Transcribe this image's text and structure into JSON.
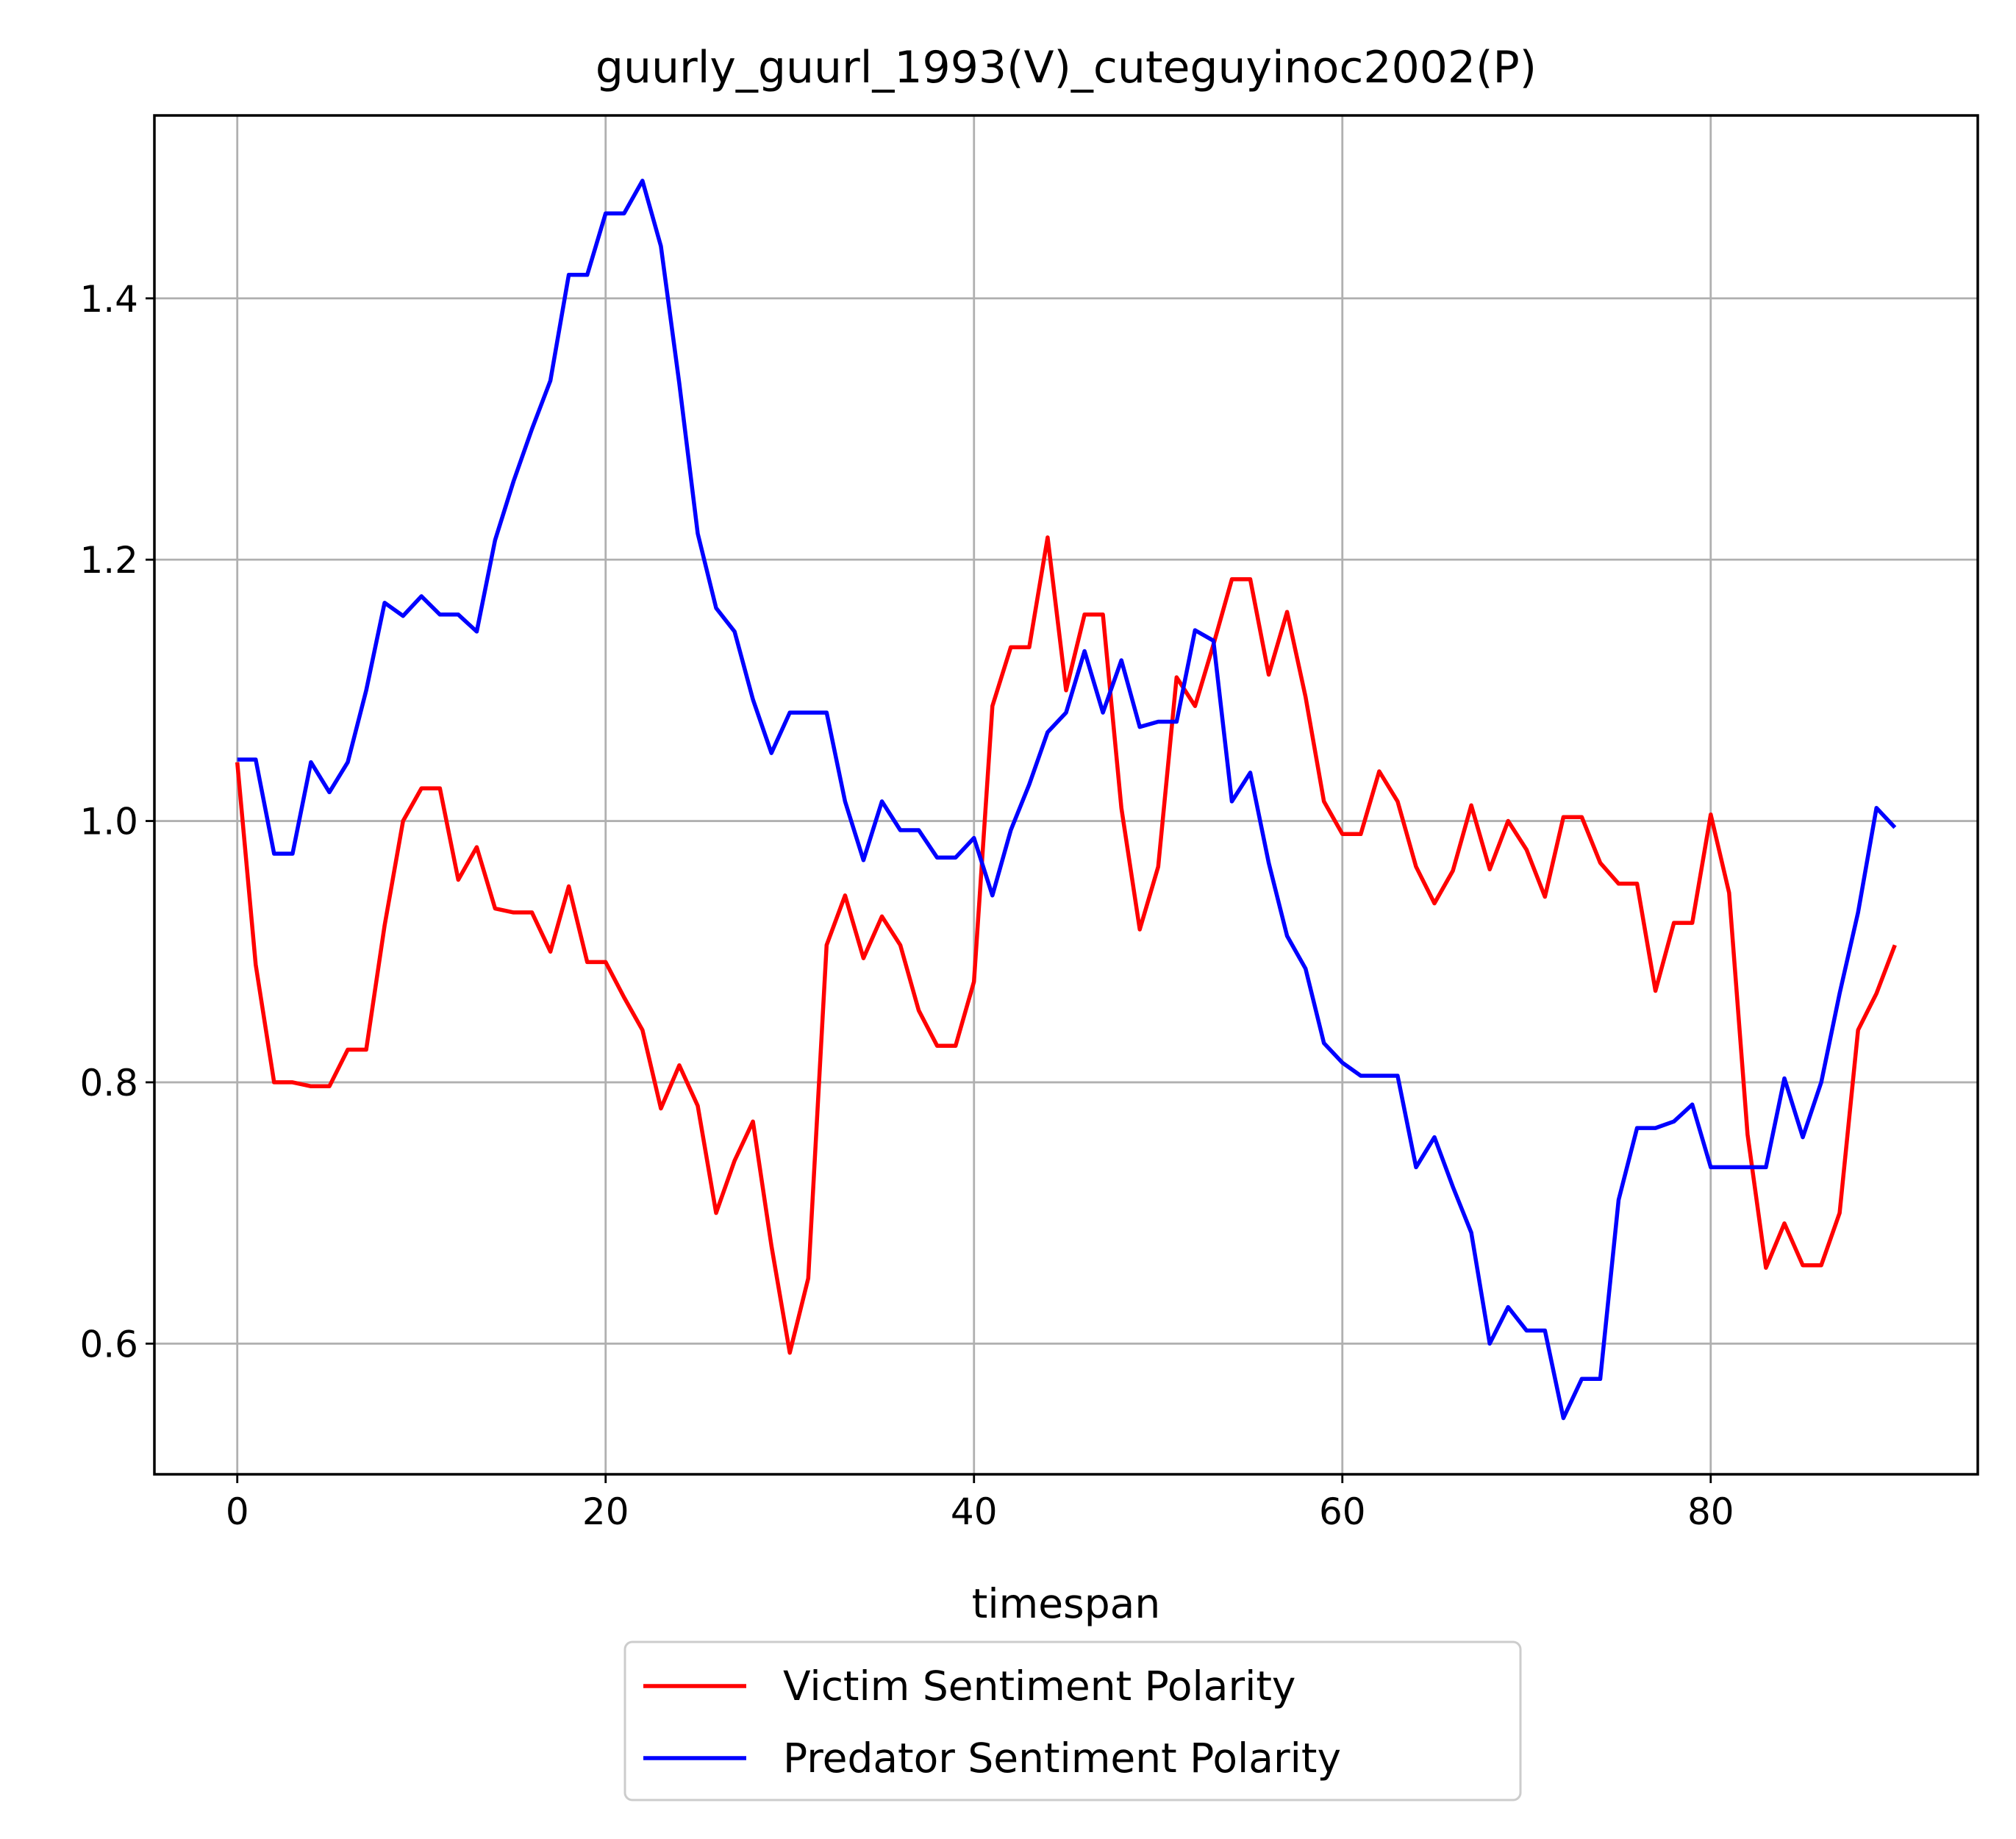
{
  "chart_data": {
    "type": "line",
    "title": "guurly_guurl_1993(V)_cuteguyinoc2002(P)",
    "xlabel": "timespan",
    "ylabel": "",
    "xlim": [
      -4.5,
      94.5
    ],
    "ylim": [
      0.5,
      1.54
    ],
    "xticks": [
      0,
      20,
      40,
      60,
      80
    ],
    "yticks": [
      0.6,
      0.8,
      1.0,
      1.2,
      1.4
    ],
    "xtick_labels": [
      "0",
      "20",
      "40",
      "60",
      "80"
    ],
    "ytick_labels": [
      "0.6",
      "0.8",
      "1.0",
      "1.2",
      "1.4"
    ],
    "grid": true,
    "legend_position": "below-center",
    "series": [
      {
        "name": "Victim Sentiment Polarity",
        "color": "#ff0000",
        "values": [
          1.045,
          0.89,
          0.8,
          0.8,
          0.797,
          0.797,
          0.825,
          0.825,
          0.92,
          1.0,
          1.025,
          1.025,
          0.955,
          0.98,
          0.933,
          0.93,
          0.93,
          0.9,
          0.95,
          0.892,
          0.892,
          0.865,
          0.84,
          0.78,
          0.813,
          0.782,
          0.7,
          0.74,
          0.77,
          0.675,
          0.593,
          0.65,
          0.905,
          0.943,
          0.895,
          0.927,
          0.905,
          0.855,
          0.828,
          0.828,
          0.877,
          1.088,
          1.133,
          1.133,
          1.217,
          1.1,
          1.158,
          1.158,
          1.01,
          0.917,
          0.965,
          1.11,
          1.088,
          1.135,
          1.185,
          1.185,
          1.112,
          1.16,
          1.095,
          1.015,
          0.99,
          0.99,
          1.038,
          1.015,
          0.965,
          0.937,
          0.962,
          1.012,
          0.963,
          1.0,
          0.978,
          0.942,
          1.003,
          1.003,
          0.968,
          0.952,
          0.952,
          0.87,
          0.922,
          0.922,
          1.005,
          0.945,
          0.76,
          0.658,
          0.692,
          0.66,
          0.66,
          0.7,
          0.84,
          0.868,
          0.905
        ]
      },
      {
        "name": "Predator Sentiment Polarity",
        "color": "#0000ff",
        "values": [
          1.047,
          1.047,
          0.975,
          0.975,
          1.045,
          1.022,
          1.045,
          1.1,
          1.167,
          1.157,
          1.172,
          1.158,
          1.158,
          1.145,
          1.215,
          1.26,
          1.3,
          1.337,
          1.418,
          1.418,
          1.465,
          1.465,
          1.49,
          1.44,
          1.335,
          1.22,
          1.163,
          1.145,
          1.093,
          1.052,
          1.083,
          1.083,
          1.083,
          1.015,
          0.97,
          1.015,
          0.993,
          0.993,
          0.972,
          0.972,
          0.987,
          0.943,
          0.993,
          1.028,
          1.068,
          1.083,
          1.13,
          1.083,
          1.123,
          1.072,
          1.076,
          1.076,
          1.146,
          1.138,
          1.015,
          1.037,
          0.968,
          0.912,
          0.887,
          0.83,
          0.815,
          0.805,
          0.805,
          0.805,
          0.735,
          0.758,
          0.72,
          0.685,
          0.6,
          0.628,
          0.61,
          0.61,
          0.543,
          0.573,
          0.573,
          0.71,
          0.765,
          0.765,
          0.77,
          0.783,
          0.735,
          0.735,
          0.735,
          0.735,
          0.803,
          0.758,
          0.8,
          0.868,
          0.93,
          1.01,
          0.995
        ]
      }
    ]
  }
}
